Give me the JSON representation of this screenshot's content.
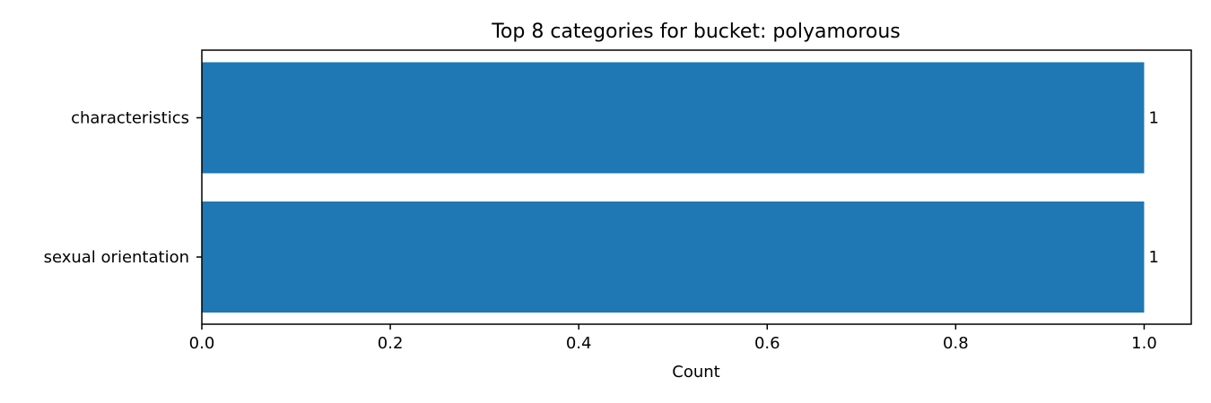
{
  "chart_data": {
    "type": "bar",
    "orientation": "horizontal",
    "title": "Top 8 categories for bucket: polyamorous",
    "xlabel": "Count",
    "ylabel": "",
    "categories": [
      "characteristics",
      "sexual orientation"
    ],
    "values": [
      1,
      1
    ],
    "data_labels": [
      "1",
      "1"
    ],
    "xlim": [
      0,
      1.05
    ],
    "xticks": [
      0.0,
      0.2,
      0.4,
      0.6,
      0.8,
      1.0
    ],
    "xtick_labels": [
      "0.0",
      "0.2",
      "0.4",
      "0.6",
      "0.8",
      "1.0"
    ],
    "grid": false,
    "legend": "none",
    "colors": {
      "bar": "#1f77b4",
      "axis": "#000000",
      "background": "#ffffff"
    }
  }
}
